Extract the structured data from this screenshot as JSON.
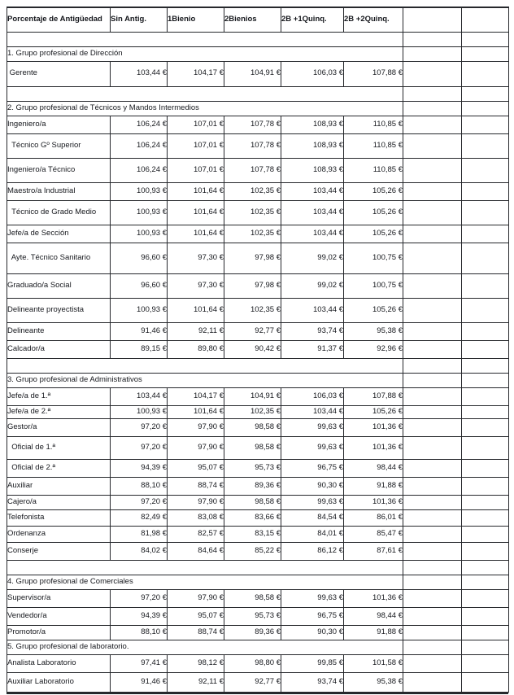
{
  "document": {
    "background": "#ffffff",
    "text_color": "#16181d",
    "border_color": "#26282c"
  },
  "table": {
    "columns": [
      "Porcentaje de Antigüedad",
      "Sin Antig.",
      "1Bienio",
      "2Bienios",
      "2B +1Quinq.",
      "2B +2Quinq.",
      "",
      ""
    ],
    "rows": [
      {
        "type": "spacer"
      },
      {
        "type": "section",
        "label": "1. Grupo profesional de Dirección"
      },
      {
        "type": "data",
        "label": " Gerente",
        "values": [
          "103,44 €",
          "104,17 €",
          "104,91 €",
          "106,03 €",
          "107,88 €"
        ]
      },
      {
        "type": "spacer"
      },
      {
        "type": "section",
        "label": "2. Grupo profesional de Técnicos y Mandos Intermedios"
      },
      {
        "type": "data",
        "label": "Ingeniero/a",
        "values": [
          "106,24 €",
          "107,01 €",
          "107,78 €",
          "108,93 €",
          "110,85 €"
        ]
      },
      {
        "type": "data",
        "label": "  Técnico Gº Superior",
        "values": [
          "106,24 €",
          "107,01 €",
          "107,78 €",
          "108,93 €",
          "110,85 €"
        ]
      },
      {
        "type": "data",
        "label": "Ingeniero/a Técnico",
        "values": [
          "106,24 €",
          "107,01 €",
          "107,78 €",
          "108,93 €",
          "110,85 €"
        ]
      },
      {
        "type": "data",
        "label": "Maestro/a Industrial",
        "values": [
          "100,93 €",
          "101,64 €",
          "102,35 €",
          "103,44 €",
          "105,26 €"
        ]
      },
      {
        "type": "data",
        "label": "  Técnico de Grado Medio",
        "values": [
          "100,93 €",
          "101,64 €",
          "102,35 €",
          "103,44 €",
          "105,26 €"
        ]
      },
      {
        "type": "data",
        "label": "Jefe/a de Sección",
        "values": [
          "100,93 €",
          "101,64 €",
          "102,35 €",
          "103,44 €",
          "105,26 €"
        ]
      },
      {
        "type": "data",
        "label": "  Ayte. Técnico Sanitario",
        "values": [
          "96,60 €",
          "97,30 €",
          "97,98 €",
          "99,02 €",
          "100,75 €"
        ]
      },
      {
        "type": "data",
        "label": "Graduado/a Social",
        "values": [
          "96,60 €",
          "97,30 €",
          "97,98 €",
          "99,02 €",
          "100,75 €"
        ]
      },
      {
        "type": "data",
        "label": "Delineante proyectista",
        "values": [
          "100,93 €",
          "101,64 €",
          "102,35 €",
          "103,44 €",
          "105,26 €"
        ]
      },
      {
        "type": "data",
        "label": "Delineante",
        "values": [
          "91,46 €",
          "92,11 €",
          "92,77 €",
          "93,74 €",
          "95,38 €"
        ]
      },
      {
        "type": "data",
        "label": "Calcador/a",
        "values": [
          "89,15 €",
          "89,80 €",
          "90,42 €",
          "91,37 €",
          "92,96 €"
        ]
      },
      {
        "type": "spacer"
      },
      {
        "type": "section",
        "label": "3. Grupo profesional de Administrativos"
      },
      {
        "type": "data",
        "label": "Jefe/a de 1.ª",
        "values": [
          "103,44 €",
          "104,17 €",
          "104,91 €",
          "106,03 €",
          "107,88 €"
        ]
      },
      {
        "type": "data",
        "label": "Jefe/a de 2.ª",
        "values": [
          "100,93 €",
          "101,64 €",
          "102,35 €",
          "103,44 €",
          "105,26 €"
        ]
      },
      {
        "type": "data",
        "label": "Gestor/a",
        "values": [
          "97,20 €",
          "97,90 €",
          "98,58 €",
          "99,63 €",
          "101,36 €"
        ]
      },
      {
        "type": "data",
        "label": "  Oficial de 1.ª",
        "values": [
          "97,20 €",
          "97,90 €",
          "98,58 €",
          "99,63 €",
          "101,36 €"
        ]
      },
      {
        "type": "data",
        "label": "  Oficial de 2.ª",
        "values": [
          "94,39 €",
          "95,07 €",
          "95,73 €",
          "96,75 €",
          "98,44 €"
        ]
      },
      {
        "type": "data",
        "label": "Auxiliar",
        "values": [
          "88,10 €",
          "88,74 €",
          "89,36 €",
          "90,30 €",
          "91,88 €"
        ]
      },
      {
        "type": "data",
        "label": "Cajero/a",
        "values": [
          "97,20 €",
          "97,90 €",
          "98,58 €",
          "99,63 €",
          "101,36 €"
        ]
      },
      {
        "type": "data",
        "label": "Telefonista",
        "values": [
          "82,49 €",
          "83,08 €",
          "83,66 €",
          "84,54 €",
          "86,01 €"
        ]
      },
      {
        "type": "data",
        "label": "Ordenanza",
        "values": [
          "81,98 €",
          "82,57 €",
          "83,15 €",
          "84,01 €",
          "85,47 €"
        ]
      },
      {
        "type": "data",
        "label": "Conserje",
        "values": [
          "84,02 €",
          "84,64 €",
          "85,22 €",
          "86,12 €",
          "87,61 €"
        ]
      },
      {
        "type": "spacer"
      },
      {
        "type": "section",
        "label": "4. Grupo profesional de Comerciales"
      },
      {
        "type": "data",
        "label": "Supervisor/a",
        "values": [
          "97,20 €",
          "97,90 €",
          "98,58 €",
          "99,63 €",
          "101,36 €"
        ]
      },
      {
        "type": "data",
        "label": "Vendedor/a",
        "values": [
          "94,39 €",
          "95,07 €",
          "95,73 €",
          "96,75 €",
          "98,44 €"
        ]
      },
      {
        "type": "data",
        "label": "Promotor/a",
        "values": [
          "88,10 €",
          "88,74 €",
          "89,36 €",
          "90,30 €",
          "91,88 €"
        ]
      },
      {
        "type": "section",
        "label": "5. Grupo profesional de laboratorio."
      },
      {
        "type": "data",
        "label": "Analista Laboratorio",
        "values": [
          "97,41 €",
          "98,12 €",
          "98,80 €",
          "99,85 €",
          "101,58 €"
        ]
      },
      {
        "type": "data",
        "label": "Auxiliar Laboratorio",
        "values": [
          "91,46 €",
          "92,11 €",
          "92,77 €",
          "93,74 €",
          "95,38 €"
        ]
      }
    ]
  }
}
